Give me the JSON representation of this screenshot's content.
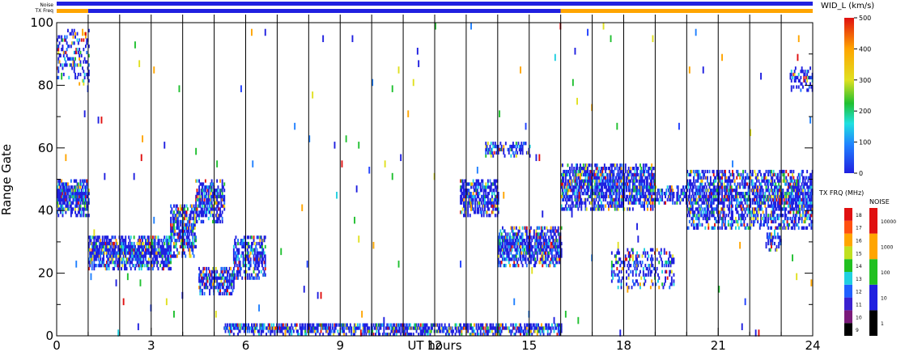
{
  "chart_data": {
    "type": "heatmap",
    "xlabel": "UT hours",
    "ylabel": "Range Gate",
    "xlim": [
      0,
      24
    ],
    "ylim": [
      0,
      100
    ],
    "x_ticks": [
      "0",
      "3",
      "6",
      "9",
      "12",
      "15",
      "18",
      "21",
      "24"
    ],
    "y_ticks": [
      "0",
      "20",
      "40",
      "60",
      "80",
      "100"
    ],
    "top_bars": {
      "noise_label": "Noise",
      "txfreq_label": "TX Freq",
      "noise_segments": [
        {
          "start": 0,
          "end": 24,
          "color": "#2020e0"
        }
      ],
      "txfreq_segments": [
        {
          "start": 0,
          "end": 1,
          "color": "#ffa500"
        },
        {
          "start": 1,
          "end": 16,
          "color": "#2020e0"
        },
        {
          "start": 16,
          "end": 24,
          "color": "#ffa500"
        }
      ]
    },
    "scan_lines_ut": [
      1,
      2,
      3,
      4,
      5,
      6,
      7,
      8,
      9,
      10,
      11,
      12,
      13,
      14,
      15,
      16,
      17,
      18,
      19,
      20,
      21,
      22,
      23
    ],
    "scatter_regions": [
      {
        "t0": 0,
        "t1": 1,
        "g0": 38,
        "g1": 50,
        "fill": 0.95
      },
      {
        "t0": 1,
        "t1": 3.6,
        "g0": 21,
        "g1": 32,
        "fill": 0.9
      },
      {
        "t0": 3.6,
        "t1": 4.4,
        "g0": 25,
        "g1": 42,
        "fill": 0.8
      },
      {
        "t0": 4.4,
        "t1": 5.3,
        "g0": 36,
        "g1": 50,
        "fill": 0.75
      },
      {
        "t0": 4.5,
        "t1": 5.6,
        "g0": 13,
        "g1": 22,
        "fill": 0.85
      },
      {
        "t0": 5.6,
        "t1": 6.6,
        "g0": 18,
        "g1": 32,
        "fill": 0.65
      },
      {
        "t0": 5.3,
        "t1": 16,
        "g0": 0,
        "g1": 4,
        "fill": 0.8
      },
      {
        "t0": 12.8,
        "t1": 14,
        "g0": 38,
        "g1": 50,
        "fill": 0.75
      },
      {
        "t0": 14,
        "t1": 16,
        "g0": 22,
        "g1": 35,
        "fill": 0.85
      },
      {
        "t0": 13.6,
        "t1": 15,
        "g0": 57,
        "g1": 62,
        "fill": 0.5
      },
      {
        "t0": 16,
        "t1": 19,
        "g0": 40,
        "g1": 55,
        "fill": 0.85
      },
      {
        "t0": 19,
        "t1": 20,
        "g0": 42,
        "g1": 48,
        "fill": 0.6
      },
      {
        "t0": 20,
        "t1": 24,
        "g0": 34,
        "g1": 53,
        "fill": 0.75
      },
      {
        "t0": 17.6,
        "t1": 19.6,
        "g0": 15,
        "g1": 28,
        "fill": 0.4
      },
      {
        "t0": 22.5,
        "t1": 23,
        "g0": 27,
        "g1": 33,
        "fill": 0.5
      },
      {
        "t0": 23.3,
        "t1": 24,
        "g0": 78,
        "g1": 86,
        "fill": 0.45
      },
      {
        "t0": 0,
        "t1": 1,
        "g0": 80,
        "g1": 98,
        "fill": 0.3
      }
    ],
    "noise_density": 0.004,
    "colorbar_velocity": {
      "title": "WID_L (km/s)",
      "min": 0,
      "max": 500,
      "ticks": [
        "0",
        "100",
        "200",
        "300",
        "400",
        "500"
      ]
    },
    "colorbar_txfreq": {
      "title": "TX FRQ (MHz)",
      "ticks": [
        "9",
        "10",
        "11",
        "12",
        "13",
        "14",
        "15",
        "16",
        "17",
        "18"
      ],
      "colors": [
        "#000000",
        "#7a1a7a",
        "#3a20d0",
        "#2060ff",
        "#20d0e0",
        "#20c020",
        "#c0e020",
        "#ffa500",
        "#ff5010",
        "#e01010"
      ]
    },
    "colorbar_noise": {
      "title": "NOISE",
      "ticks": [
        "1",
        "10",
        "100",
        "1000",
        "10000"
      ],
      "colors": [
        "#000000",
        "#2020e0",
        "#20c020",
        "#ffa500",
        "#e01010"
      ]
    }
  }
}
